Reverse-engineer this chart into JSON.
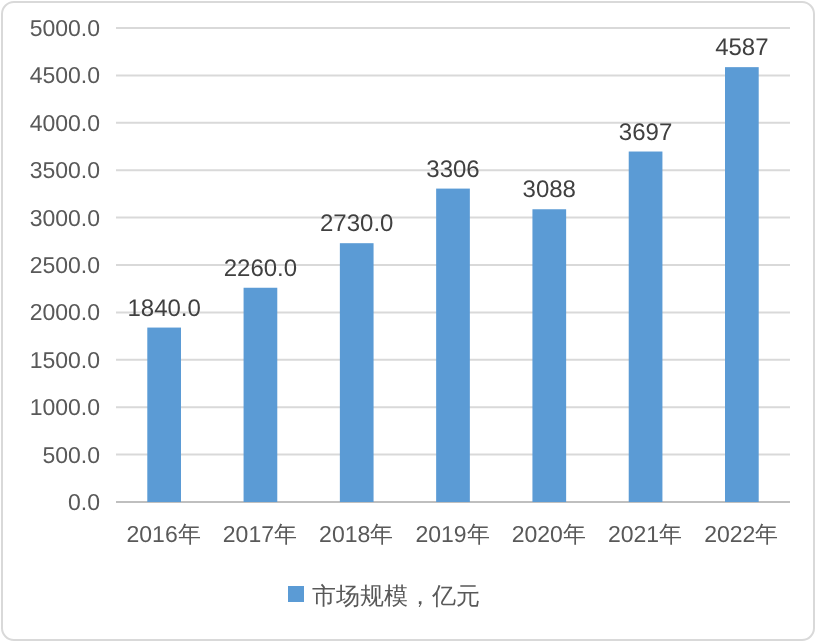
{
  "chart_data": {
    "type": "bar",
    "categories": [
      "2016年",
      "2017年",
      "2018年",
      "2019年",
      "2020年",
      "2021年",
      "2022年"
    ],
    "series": [
      {
        "name": "市场规模，亿元",
        "color": "#5b9bd5",
        "values": [
          1840.0,
          2260.0,
          2730.0,
          3306,
          3088,
          3697,
          4587
        ],
        "value_labels": [
          "1840.0",
          "2260.0",
          "2730.0",
          "3306",
          "3088",
          "3697",
          "4587"
        ]
      }
    ],
    "ylim": [
      0,
      5000
    ],
    "yticks": [
      {
        "value": 0,
        "label": "0.0"
      },
      {
        "value": 500,
        "label": "500.0"
      },
      {
        "value": 1000,
        "label": "1000.0"
      },
      {
        "value": 1500,
        "label": "1500.0"
      },
      {
        "value": 2000,
        "label": "2000.0"
      },
      {
        "value": 2500,
        "label": "2500.0"
      },
      {
        "value": 3000,
        "label": "3000.0"
      },
      {
        "value": 3500,
        "label": "3500.0"
      },
      {
        "value": 4000,
        "label": "4000.0"
      },
      {
        "value": 4500,
        "label": "4500.0"
      },
      {
        "value": 5000,
        "label": "5000.0"
      }
    ],
    "grid": "y",
    "legend": "bottom"
  }
}
